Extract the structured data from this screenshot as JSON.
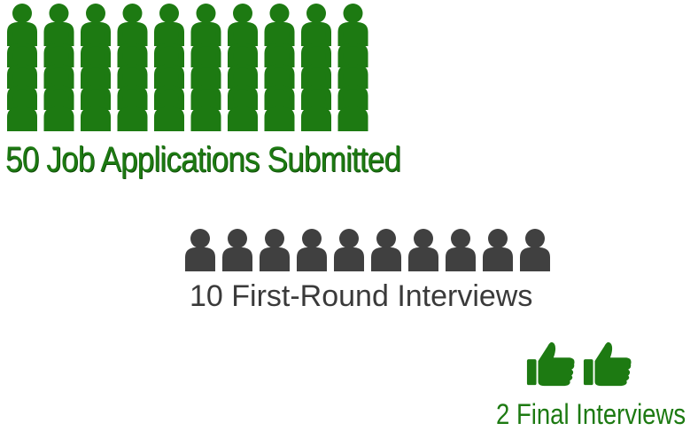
{
  "stages": [
    {
      "count": 50,
      "label": "50 Job Applications Submitted",
      "icon": "person-icon",
      "color": "#1d7a12"
    },
    {
      "count": 10,
      "label": "10 First-Round Interviews",
      "icon": "person-icon",
      "color": "#404040"
    },
    {
      "count": 2,
      "label": "2 Final Interviews",
      "icon": "thumbs-up-icon",
      "color": "#1d7a12"
    }
  ]
}
